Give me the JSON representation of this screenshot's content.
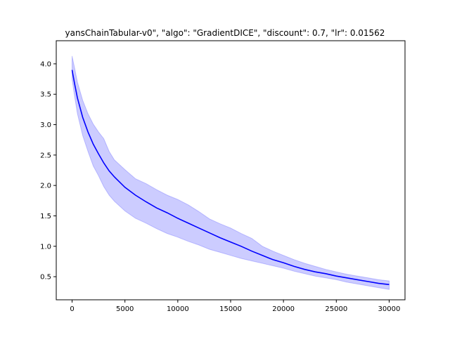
{
  "chart_data": {
    "type": "line",
    "title": "yansChainTabular-v0\", \"algo\": \"GradientDICE\", \"discount\": 0.7, \"lr\": 0.01562",
    "xlabel": "",
    "ylabel": "",
    "xlim": [
      -1500,
      31500
    ],
    "ylim": [
      0.12,
      4.38
    ],
    "x_ticks": [
      0,
      5000,
      10000,
      15000,
      20000,
      25000,
      30000
    ],
    "y_ticks": [
      0.5,
      1.0,
      1.5,
      2.0,
      2.5,
      3.0,
      3.5,
      4.0
    ],
    "x_tick_labels": [
      "0",
      "5000",
      "10000",
      "15000",
      "20000",
      "25000",
      "30000"
    ],
    "y_tick_labels": [
      "0.5",
      "1.0",
      "1.5",
      "2.0",
      "2.5",
      "3.0",
      "3.5",
      "4.0"
    ],
    "grid": false,
    "legend": "none",
    "colors": {
      "line": "#0000ff",
      "band": "#0000ff",
      "axes": "#000000"
    },
    "series": [
      {
        "x": [
          0,
          250,
          500,
          1000,
          1500,
          2000,
          2500,
          3000,
          3500,
          4000,
          5000,
          6000,
          7000,
          8000,
          9000,
          10000,
          11000,
          12000,
          13000,
          14000,
          15000,
          16000,
          17000,
          18000,
          19000,
          20000,
          21000,
          22000,
          23000,
          24000,
          25000,
          26000,
          27000,
          28000,
          29000,
          30000
        ],
        "y": [
          3.9,
          3.66,
          3.44,
          3.12,
          2.88,
          2.68,
          2.52,
          2.37,
          2.24,
          2.14,
          1.97,
          1.84,
          1.73,
          1.63,
          1.55,
          1.46,
          1.38,
          1.3,
          1.22,
          1.14,
          1.07,
          1.0,
          0.92,
          0.85,
          0.78,
          0.73,
          0.67,
          0.62,
          0.58,
          0.55,
          0.51,
          0.48,
          0.45,
          0.42,
          0.39,
          0.37
        ],
        "lower": [
          3.75,
          3.45,
          3.18,
          2.82,
          2.56,
          2.32,
          2.16,
          1.98,
          1.84,
          1.74,
          1.58,
          1.46,
          1.38,
          1.29,
          1.21,
          1.15,
          1.08,
          1.02,
          0.95,
          0.9,
          0.85,
          0.8,
          0.76,
          0.72,
          0.68,
          0.64,
          0.59,
          0.55,
          0.51,
          0.48,
          0.45,
          0.41,
          0.38,
          0.35,
          0.32,
          0.29
        ],
        "upper": [
          4.13,
          3.92,
          3.7,
          3.4,
          3.18,
          3.01,
          2.88,
          2.77,
          2.56,
          2.42,
          2.26,
          2.11,
          2.03,
          1.93,
          1.84,
          1.77,
          1.68,
          1.57,
          1.45,
          1.37,
          1.3,
          1.21,
          1.13,
          1.0,
          0.92,
          0.85,
          0.78,
          0.72,
          0.67,
          0.62,
          0.58,
          0.54,
          0.51,
          0.48,
          0.45,
          0.43
        ]
      }
    ]
  }
}
